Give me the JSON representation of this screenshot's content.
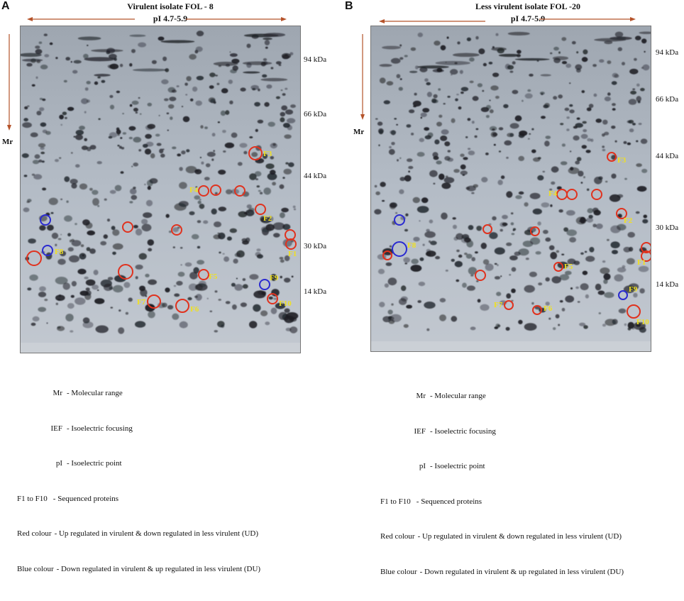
{
  "panels": [
    {
      "letter": "A",
      "title": "Virulent isolate FOL - 8",
      "pi_range": "pI 4.7-5.9",
      "mr": "Mr",
      "markers": [
        "94 kDa",
        "66 kDa",
        "44 kDa",
        "30 kDa",
        "14 kDa"
      ],
      "spot_labels": [
        "F1",
        "F2",
        "F3",
        "F4",
        "F5",
        "F6",
        "F7",
        "F8",
        "F9",
        "F10"
      ],
      "legend": [
        {
          "term": "Mr",
          "desc": "- Molecular range"
        },
        {
          "term": "IEF",
          "desc": "- Isoelectric focusing"
        },
        {
          "term": "pI",
          "desc": "- Isoelectric point"
        },
        {
          "term": "F1 to F10",
          "desc": "- Sequenced proteins"
        },
        {
          "term": "Red colour",
          "desc": "- Up regulated in virulent & down regulated in less virulent (UD)"
        },
        {
          "term": "Blue colour",
          "desc": "- Down regulated in virulent & up regulated in less virulent (DU)"
        }
      ]
    },
    {
      "letter": "B",
      "title": "Less virulent isolate FOL -20",
      "pi_range": "pI 4.7-5.9",
      "mr": "Mr",
      "markers": [
        "94 kDa",
        "66 kDa",
        "44 kDa",
        "30 kDa",
        "14 kDa"
      ],
      "spot_labels": [
        "F1",
        "F2",
        "F3",
        "F4",
        "F5",
        "F6",
        "F7",
        "F8",
        "F9",
        "F10"
      ],
      "legend": [
        {
          "term": "Mr",
          "desc": "- Molecular range"
        },
        {
          "term": "IEF",
          "desc": "- Isoelectric focusing"
        },
        {
          "term": "pI",
          "desc": "- Isoelectric point"
        },
        {
          "term": "F1 to F10",
          "desc": "- Sequenced proteins"
        },
        {
          "term": "Red colour",
          "desc": "- Up regulated in virulent & down regulated in less virulent (UD)"
        },
        {
          "term": "Blue colour",
          "desc": "- Down regulated in virulent & up regulated in less virulent (DU)"
        }
      ]
    }
  ],
  "colors": {
    "arrow": "#b5532a",
    "up_regulated": "#e0321e",
    "down_regulated": "#2a2ad0",
    "spot_label": "#f0e020",
    "gel_background": "#b4bcc6"
  }
}
